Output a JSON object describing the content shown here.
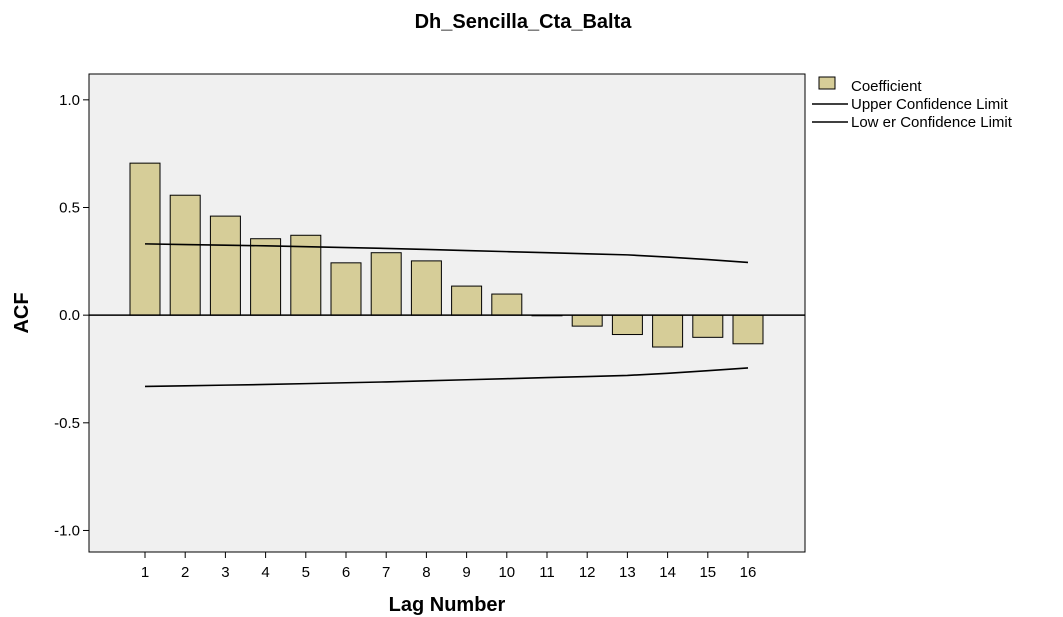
{
  "chart_data": {
    "type": "bar",
    "title": "Dh_Sencilla_Cta_Balta",
    "xlabel": "Lag Number",
    "ylabel": "ACF",
    "categories": [
      "1",
      "2",
      "3",
      "4",
      "5",
      "6",
      "7",
      "8",
      "9",
      "10",
      "11",
      "12",
      "13",
      "14",
      "15",
      "16"
    ],
    "series": [
      {
        "name": "Coefficient",
        "values": [
          0.706,
          0.557,
          0.46,
          0.355,
          0.371,
          0.243,
          0.29,
          0.252,
          0.135,
          0.098,
          -0.003,
          -0.051,
          -0.09,
          -0.148,
          -0.103,
          -0.133
        ]
      },
      {
        "name": "Upper Confidence Limit",
        "values": [
          0.331,
          0.328,
          0.325,
          0.322,
          0.318,
          0.314,
          0.31,
          0.305,
          0.3,
          0.295,
          0.29,
          0.285,
          0.28,
          0.27,
          0.258,
          0.245
        ]
      },
      {
        "name": "Lower Confidence Limit",
        "values": [
          -0.331,
          -0.328,
          -0.325,
          -0.322,
          -0.318,
          -0.314,
          -0.31,
          -0.305,
          -0.3,
          -0.295,
          -0.29,
          -0.285,
          -0.28,
          -0.27,
          -0.258,
          -0.245
        ]
      }
    ],
    "ylim": [
      -1.1,
      1.12
    ],
    "yticks": [
      "-1.0",
      "-0.5",
      "0.0",
      "0.5",
      "1.0"
    ],
    "ytick_values": [
      -1.0,
      -0.5,
      0.0,
      0.5,
      1.0
    ],
    "legend": {
      "placement": "top-right",
      "entries": [
        "Coefficient",
        "Upper Confidence Limit",
        "Lower Confidence Limit"
      ]
    },
    "legend_display": [
      "Coefficient",
      "Upper Confidence Limit",
      "Low er Confidence Limit"
    ],
    "grid": false,
    "colors": {
      "bar_fill": "#D6CD98",
      "bar_stroke": "#000000",
      "plot_bg": "#F0F0F0",
      "line": "#000000"
    }
  }
}
